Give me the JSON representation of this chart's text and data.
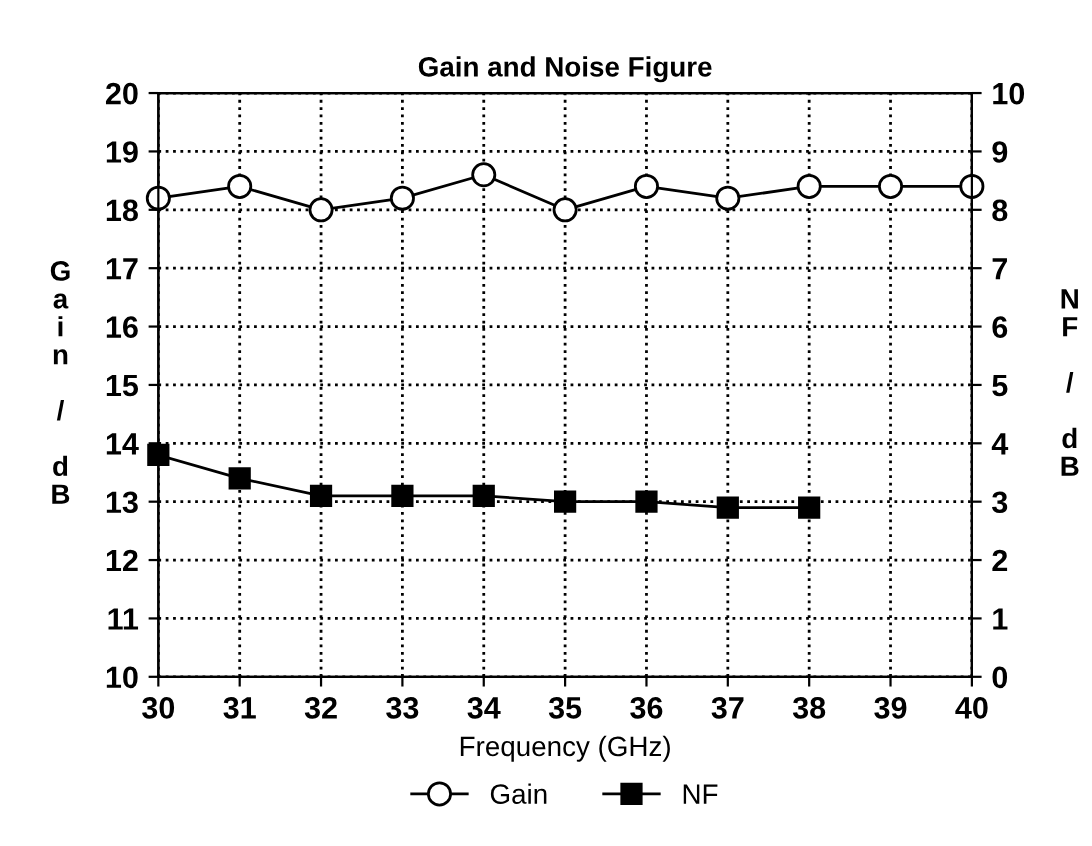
{
  "chart_data": {
    "type": "line",
    "title": "Gain and Noise Figure",
    "xlabel": "Frequency (GHz)",
    "ylabel": "Gain / dB",
    "y2label": "NF / dB",
    "x": [
      30,
      31,
      32,
      33,
      34,
      35,
      36,
      37,
      38,
      39,
      40
    ],
    "series": [
      {
        "name": "Gain",
        "color": "#000000",
        "marker": "circle",
        "values": [
          18.2,
          18.4,
          18.0,
          18.2,
          18.6,
          18.0,
          18.4,
          18.2,
          18.4,
          18.4,
          18.4
        ]
      },
      {
        "name": "NF",
        "color": "#000000",
        "marker": "square",
        "axis": "y2",
        "values": [
          3.8,
          3.4,
          3.1,
          3.1,
          3.1,
          3.0,
          3.0,
          2.9,
          2.9,
          null,
          null
        ]
      }
    ],
    "xlim": [
      30,
      40
    ],
    "xticks": [
      30,
      31,
      32,
      33,
      34,
      35,
      36,
      37,
      38,
      39,
      40
    ],
    "ylim": [
      10,
      20
    ],
    "yticks": [
      10,
      11,
      12,
      13,
      14,
      15,
      16,
      17,
      18,
      19,
      20
    ],
    "y2lim": [
      0,
      10
    ],
    "y2ticks": [
      0,
      1,
      2,
      3,
      4,
      5,
      6,
      7,
      8,
      9,
      10
    ],
    "grid": true,
    "legend": "bottom",
    "line_style": "solid"
  }
}
